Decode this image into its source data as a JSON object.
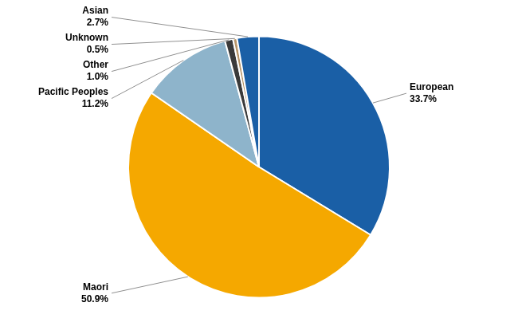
{
  "chart_data": {
    "type": "pie",
    "categories": [
      "European",
      "Maori",
      "Pacific Peoples",
      "Other",
      "Unknown",
      "Asian"
    ],
    "values": [
      33.7,
      50.9,
      11.2,
      1.0,
      0.5,
      2.7
    ],
    "value_labels": [
      "33.7%",
      "50.9%",
      "11.2%",
      "1.0%",
      "0.5%",
      "2.7%"
    ],
    "colors": [
      "#1a5fa6",
      "#f5a800",
      "#8eb4cb",
      "#3a3a3a",
      "#b8966a",
      "#1a5fa6"
    ],
    "data_labels": true
  }
}
